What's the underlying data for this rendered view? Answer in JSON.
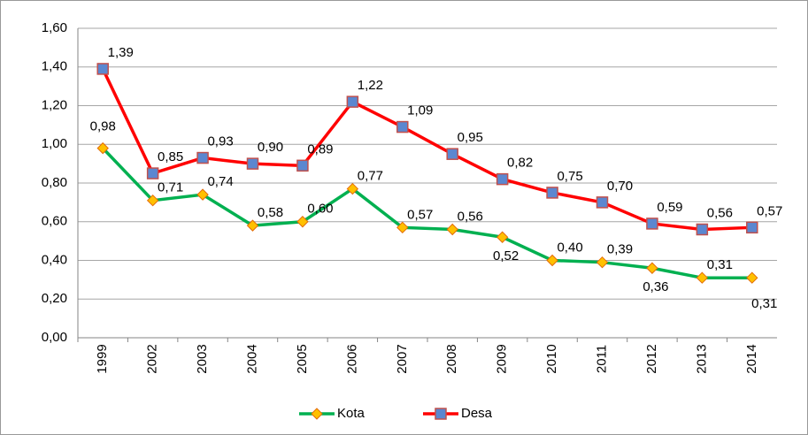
{
  "chart_data": {
    "type": "line",
    "categories": [
      "1999",
      "2002",
      "2003",
      "2004",
      "2005",
      "2006",
      "2007",
      "2008",
      "2009",
      "2010",
      "2011",
      "2012",
      "2013",
      "2014"
    ],
    "series": [
      {
        "name": "Kota",
        "color": "#00b050",
        "marker": "diamond",
        "marker_color": "#ffc000",
        "values": [
          0.98,
          0.71,
          0.74,
          0.58,
          0.6,
          0.77,
          0.57,
          0.56,
          0.52,
          0.4,
          0.39,
          0.36,
          0.31,
          0.31
        ],
        "value_labels": [
          "0,98",
          "0,71",
          "0,74",
          "0,58",
          "0,60",
          "0,77",
          "0,57",
          "0,56",
          "0,52",
          "0,40",
          "0,39",
          "0,36",
          "0,31",
          "0,31"
        ]
      },
      {
        "name": "Desa",
        "color": "#ff0000",
        "marker": "square",
        "marker_color": "#5b87d0",
        "values": [
          1.39,
          0.85,
          0.93,
          0.9,
          0.89,
          1.22,
          1.09,
          0.95,
          0.82,
          0.75,
          0.7,
          0.59,
          0.56,
          0.57
        ],
        "value_labels": [
          "1,39",
          "0,85",
          "0,93",
          "0,90",
          "0,89",
          "1,22",
          "1,09",
          "0,95",
          "0,82",
          "0,75",
          "0,70",
          "0,59",
          "0,56",
          "0,57"
        ]
      }
    ],
    "ylim": [
      0,
      1.6
    ],
    "yticks": [
      {
        "value": 0,
        "label": "0,00"
      },
      {
        "value": 0.2,
        "label": "0,20"
      },
      {
        "value": 0.4,
        "label": "0,40"
      },
      {
        "value": 0.6,
        "label": "0,60"
      },
      {
        "value": 0.8,
        "label": "0,80"
      },
      {
        "value": 1.0,
        "label": "1,00"
      },
      {
        "value": 1.2,
        "label": "1,20"
      },
      {
        "value": 1.4,
        "label": "1,40"
      },
      {
        "value": 1.6,
        "label": "1,60"
      }
    ],
    "grid": true,
    "legend": "bottom"
  }
}
